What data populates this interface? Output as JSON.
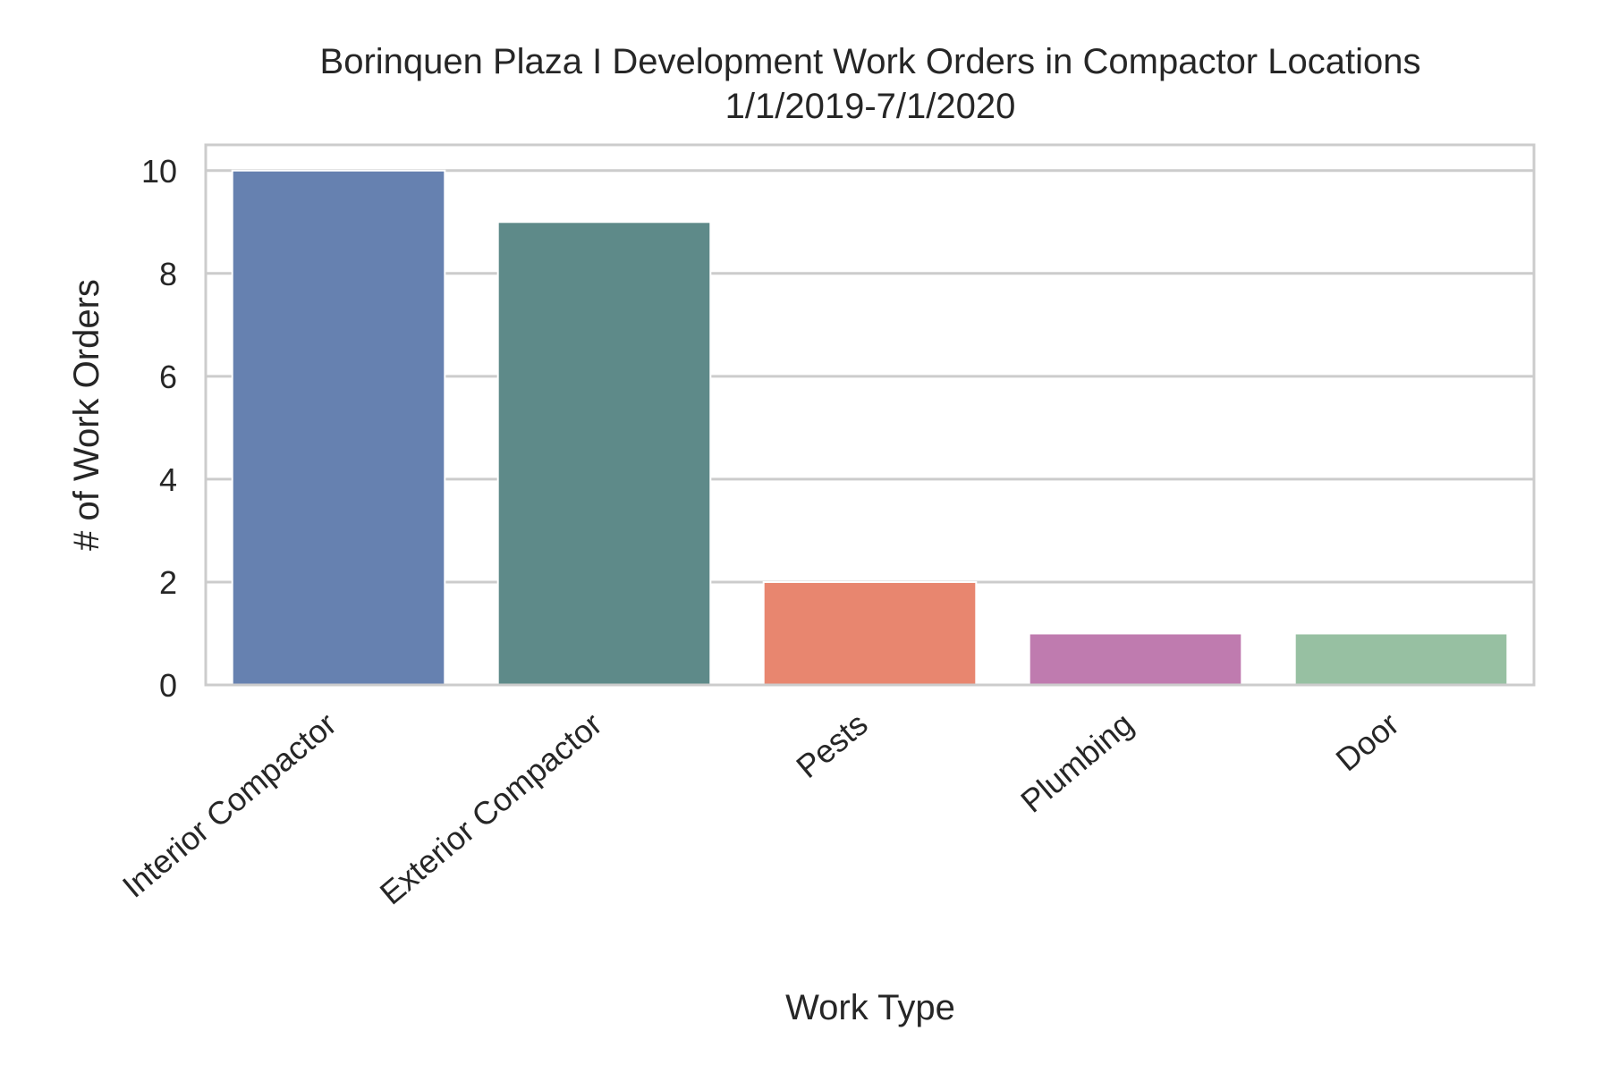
{
  "chart_data": {
    "type": "bar",
    "title": "Borinquen Plaza I Development Work Orders in Compactor Locations",
    "subtitle": "1/1/2019-7/1/2020",
    "xlabel": "Work Type",
    "ylabel": "# of Work Orders",
    "categories": [
      "Interior Compactor",
      "Exterior Compactor",
      "Pests",
      "Plumbing",
      "Door"
    ],
    "values": [
      10,
      9,
      2,
      1,
      1
    ],
    "colors": [
      "#6681b0",
      "#5e8a89",
      "#e8866f",
      "#bf7baf",
      "#97c0a2"
    ],
    "ylim": [
      0,
      10.5
    ],
    "yticks": [
      0,
      2,
      4,
      6,
      8,
      10
    ],
    "grid": true,
    "legend": "none"
  }
}
